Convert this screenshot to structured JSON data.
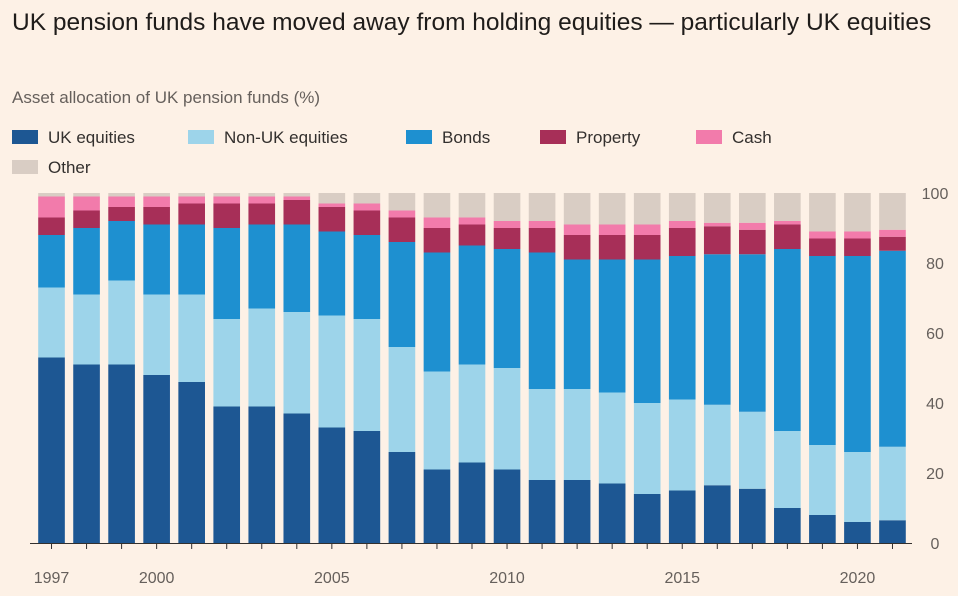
{
  "title": "UK pension funds have moved away from holding equities — particularly UK equities",
  "subtitle": "Asset allocation of UK pension funds (%)",
  "colors": {
    "background": "#fdf1e6",
    "UK equities": "#1d5793",
    "Non-UK equities": "#9dd4ea",
    "Bonds": "#1e90d0",
    "Property": "#a72f58",
    "Cash": "#f27bab",
    "Other": "#d9cdc4"
  },
  "chart_data": {
    "type": "bar",
    "stacked": true,
    "title": "UK pension funds have moved away from holding equities — particularly UK equities",
    "subtitle": "Asset allocation of UK pension funds (%)",
    "ylim": [
      0,
      100
    ],
    "yticks": [
      0,
      20,
      40,
      60,
      80,
      100
    ],
    "xtick_labels": [
      "1997",
      "2000",
      "2005",
      "2010",
      "2015",
      "2020"
    ],
    "legend_placement": "top-left",
    "grid": false,
    "categories": [
      "1997",
      "1998",
      "1999",
      "2000",
      "2001",
      "2002",
      "2003",
      "2004",
      "2005",
      "2006",
      "2007",
      "2008",
      "2009",
      "2010",
      "2011",
      "2012",
      "2013",
      "2014",
      "2015",
      "2016",
      "2017",
      "2018",
      "2019",
      "2020",
      "2021"
    ],
    "series": [
      {
        "name": "UK equities",
        "values": [
          53,
          51,
          51,
          48,
          46,
          39,
          39,
          37,
          33,
          32,
          26,
          21,
          23,
          21,
          18,
          18,
          17,
          14,
          15,
          16.5,
          15.5,
          10,
          8,
          6,
          6.5
        ]
      },
      {
        "name": "Non-UK equities",
        "values": [
          20,
          20,
          24,
          23,
          25,
          25,
          28,
          29,
          32,
          32,
          30,
          28,
          28,
          29,
          26,
          26,
          26,
          26,
          26,
          23,
          22,
          22,
          20,
          20,
          21
        ]
      },
      {
        "name": "Bonds",
        "values": [
          15,
          19,
          17,
          20,
          20,
          26,
          24,
          25,
          24,
          24,
          30,
          34,
          34,
          34,
          39,
          37,
          38,
          41,
          41,
          43,
          45,
          52,
          54,
          56,
          56
        ]
      },
      {
        "name": "Property",
        "values": [
          5,
          5,
          4,
          5,
          6,
          7,
          6,
          7,
          7,
          7,
          7,
          7,
          6,
          6,
          7,
          7,
          7,
          7,
          8,
          8,
          7,
          7,
          5,
          5,
          4
        ]
      },
      {
        "name": "Cash",
        "values": [
          6,
          4,
          3,
          3,
          2,
          2,
          2,
          1,
          1,
          2,
          2,
          3,
          2,
          2,
          2,
          3,
          3,
          3,
          2,
          1,
          2,
          1,
          2,
          2,
          2
        ]
      },
      {
        "name": "Other",
        "values": [
          1,
          1,
          1,
          1,
          1,
          1,
          1,
          1,
          3,
          3,
          5,
          7,
          7,
          8,
          8,
          9,
          9,
          9,
          8,
          8.5,
          8.5,
          8,
          11,
          11,
          10.5
        ]
      }
    ]
  }
}
